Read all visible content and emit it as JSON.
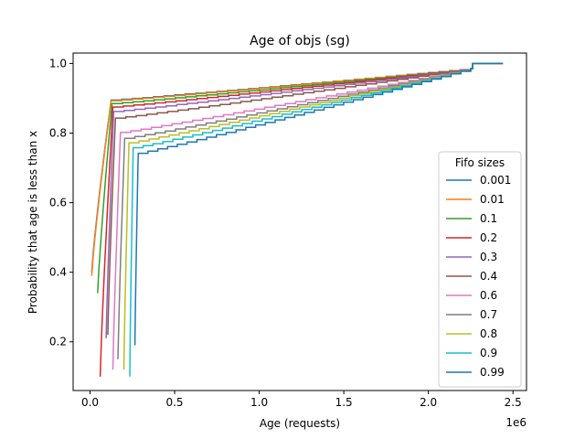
{
  "chart_data": {
    "type": "line",
    "title": "Age of objs (sg)",
    "xlabel": "Age (requests)",
    "ylabel": "Probability that age is less than x",
    "x_offset_label": "1e6",
    "xlim": [
      -100000,
      2580000
    ],
    "ylim": [
      0.06,
      1.03
    ],
    "x_ticks": [
      0,
      500000,
      1000000,
      1500000,
      2000000,
      2500000
    ],
    "x_tick_labels": [
      "0.0",
      "0.5",
      "1.0",
      "1.5",
      "2.0",
      "2.5"
    ],
    "y_ticks": [
      0.2,
      0.4,
      0.6,
      0.8,
      1.0
    ],
    "y_tick_labels": [
      "0.2",
      "0.4",
      "0.6",
      "0.8",
      "1.0"
    ],
    "grid": false,
    "legend": {
      "title": "Fifo sizes",
      "placement": "lower-right"
    },
    "series": [
      {
        "name": "0.001",
        "color": "#1f77b4",
        "x0": 10000,
        "y0": 0.4,
        "knee_x": 125000,
        "plateau": 0.895
      },
      {
        "name": "0.01",
        "color": "#ff7f0e",
        "x0": 10000,
        "y0": 0.39,
        "knee_x": 125000,
        "plateau": 0.893
      },
      {
        "name": "0.1",
        "color": "#2ca02c",
        "x0": 45000,
        "y0": 0.34,
        "knee_x": 130000,
        "plateau": 0.885
      },
      {
        "name": "0.2",
        "color": "#d62728",
        "x0": 60000,
        "y0": 0.1,
        "knee_x": 135000,
        "plateau": 0.875
      },
      {
        "name": "0.3",
        "color": "#9467bd",
        "x0": 95000,
        "y0": 0.21,
        "knee_x": 140000,
        "plateau": 0.862
      },
      {
        "name": "0.4",
        "color": "#8c564b",
        "x0": 105000,
        "y0": 0.22,
        "knee_x": 150000,
        "plateau": 0.843
      },
      {
        "name": "0.6",
        "color": "#e377c2",
        "x0": 135000,
        "y0": 0.12,
        "knee_x": 180000,
        "plateau": 0.802
      },
      {
        "name": "0.7",
        "color": "#7f7f7f",
        "x0": 165000,
        "y0": 0.15,
        "knee_x": 205000,
        "plateau": 0.785
      },
      {
        "name": "0.8",
        "color": "#bcbd22",
        "x0": 200000,
        "y0": 0.12,
        "knee_x": 230000,
        "plateau": 0.772
      },
      {
        "name": "0.9",
        "color": "#17becf",
        "x0": 235000,
        "y0": 0.1,
        "knee_x": 255000,
        "plateau": 0.758
      },
      {
        "name": "0.99",
        "color": "#1f77b4",
        "x0": 265000,
        "y0": 0.19,
        "knee_x": 285000,
        "plateau": 0.742
      }
    ],
    "end": {
      "x": 2440000,
      "y": 1.0
    }
  }
}
